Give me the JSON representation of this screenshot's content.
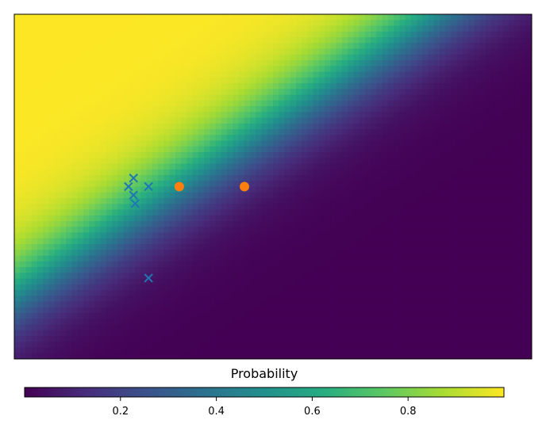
{
  "chart_data": {
    "type": "scatter",
    "background": "heatmap",
    "axes_ticks_shown": false,
    "x_range": [
      0,
      1
    ],
    "y_range": [
      0,
      1
    ],
    "colorbar": {
      "label": "Probability",
      "range": [
        0.0,
        1.0
      ],
      "ticks": [
        "0.2",
        "0.4",
        "0.6",
        "0.8"
      ],
      "tick_values": [
        0.2,
        0.4,
        0.6,
        0.8
      ],
      "colormap": "viridis",
      "orientation": "horizontal",
      "placement": "bottom"
    },
    "probability_surface": {
      "model": "logistic",
      "w_x": -13.0,
      "w_y": 13.0,
      "bias": -2.4
    },
    "series": [
      {
        "marker": "x",
        "color": "#1f77b4",
        "points": [
          [
            0.2207,
            0.5
          ],
          [
            0.2304,
            0.4753
          ],
          [
            0.2304,
            0.5247
          ],
          [
            0.2336,
            0.4506
          ],
          [
            0.2595,
            0.2346
          ],
          [
            0.2595,
            0.5
          ]
        ]
      },
      {
        "marker": "o",
        "color": "#ff7f0e",
        "points": [
          [
            0.3188,
            0.5
          ],
          [
            0.4448,
            0.5
          ]
        ]
      }
    ]
  }
}
